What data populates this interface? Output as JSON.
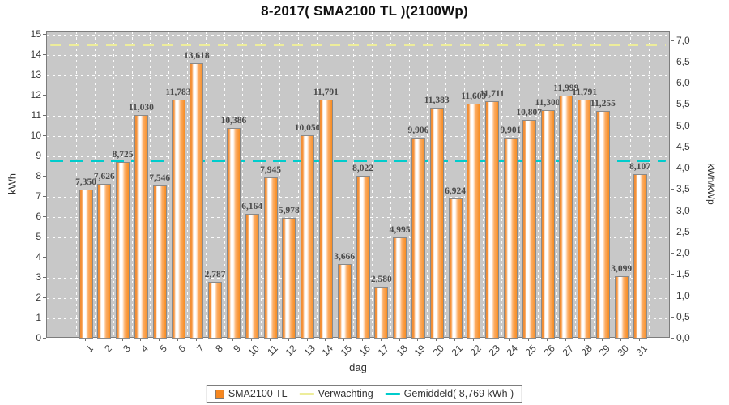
{
  "title": "8-2017( SMA2100 TL )(2100Wp)",
  "axes": {
    "left_label": "kWh",
    "right_label": "kWh/kWp",
    "bottom_label": "dag"
  },
  "legend": {
    "series_label": "SMA2100 TL",
    "verwachting_label": "Verwachting",
    "gemiddeld_label": "Gemiddeld( 8,769 kWh )"
  },
  "colors": {
    "bar": "#F6871F",
    "verwachting_line": "#EDED9B",
    "gemiddeld_line": "#00CCCC",
    "plot_bg": "#C8C8C8"
  },
  "chart_data": {
    "type": "bar",
    "title": "8-2017( SMA2100 TL )(2100Wp)",
    "xlabel": "dag",
    "ylabel_left": "kWh",
    "ylabel_right": "kWh/kWp",
    "categories": [
      1,
      2,
      3,
      4,
      5,
      6,
      7,
      8,
      9,
      10,
      11,
      12,
      13,
      14,
      15,
      16,
      17,
      18,
      19,
      20,
      21,
      22,
      23,
      24,
      25,
      26,
      27,
      28,
      29,
      30,
      31
    ],
    "series": [
      {
        "name": "SMA2100 TL",
        "values": [
          7.35,
          7.626,
          8.725,
          11.03,
          7.546,
          11.783,
          13.618,
          2.787,
          10.386,
          6.164,
          7.945,
          5.978,
          10.05,
          11.791,
          3.666,
          8.022,
          2.58,
          4.995,
          9.906,
          11.383,
          6.924,
          11.609,
          11.711,
          9.901,
          10.807,
          11.3,
          11.999,
          11.791,
          11.255,
          3.099,
          8.107
        ]
      }
    ],
    "value_labels": [
      "7,350",
      "7,626",
      "8,725",
      "11,030",
      "7,546",
      "11,783",
      "13,618",
      "2,787",
      "10,386",
      "6,164",
      "7,945",
      "5,978",
      "10,050",
      "11,791",
      "3,666",
      "8,022",
      "2,580",
      "4,995",
      "9,906",
      "11,383",
      "6,924",
      "11,609",
      "11,711",
      "9,901",
      "10,807",
      "11,300",
      "11,999",
      "11,791",
      "11,255",
      "3,099",
      "8,107"
    ],
    "reference_lines": [
      {
        "name": "Verwachting",
        "value_kwh": 14.5,
        "style": "dashed"
      },
      {
        "name": "Gemiddeld",
        "value_kwh": 8.769,
        "style": "dashed"
      }
    ],
    "gemiddeld_value_label": "8,769 kWh",
    "ylim_left": [
      0,
      15
    ],
    "y_left_tick_step": 1,
    "ylim_right": [
      0,
      7.0
    ],
    "y_right_tick_step": 0.5,
    "kwp": 2.1,
    "grid": true,
    "legend_position": "bottom"
  }
}
